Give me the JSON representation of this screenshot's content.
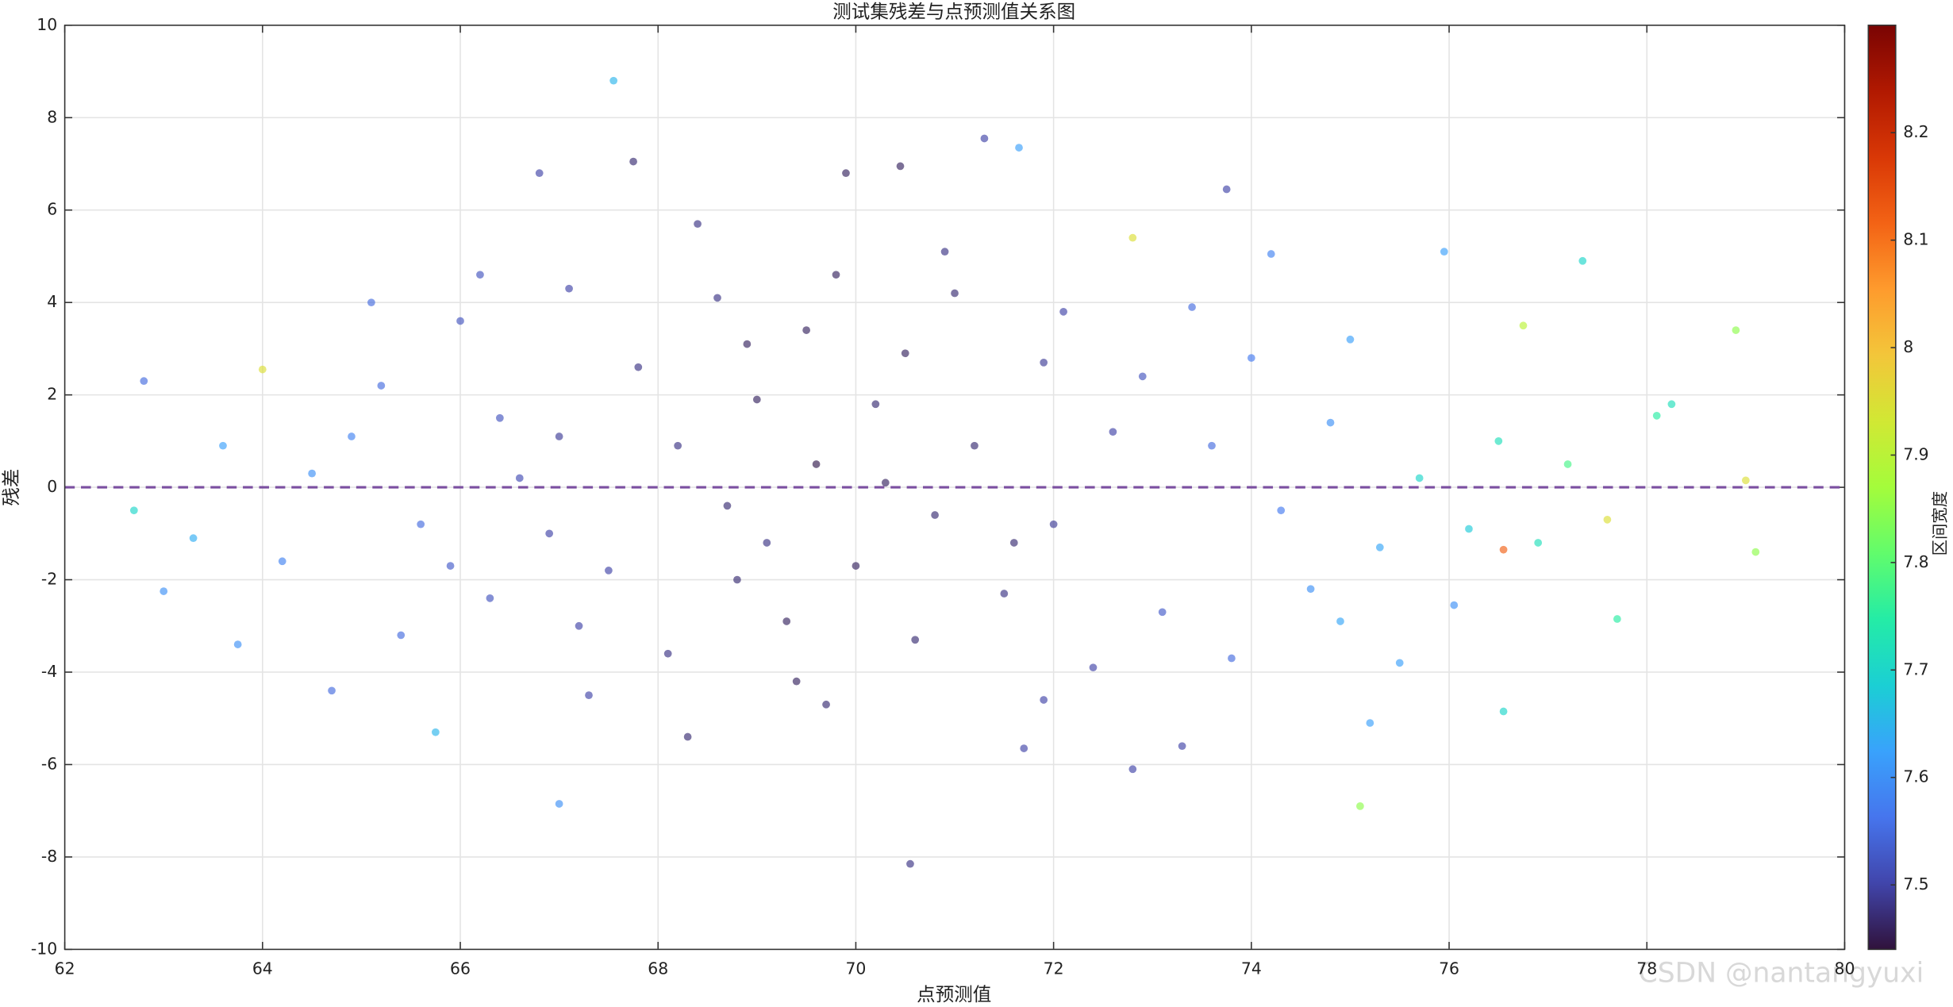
{
  "chart_data": {
    "type": "scatter",
    "title": "测试集残差与点预测值关系图",
    "x_label": "点预测值",
    "y_label": "残差",
    "colorbar_label": "区间宽度",
    "watermark": "CSDN @nantangyuxi",
    "x": [
      67.55,
      70.55,
      76.55,
      75.1,
      62.7,
      79.1,
      79.0,
      77.6,
      72.8,
      67.0,
      71.3,
      71.65,
      65.75,
      62.8,
      77.35,
      78.9,
      76.75,
      64.0,
      72.8,
      67.75,
      69.9,
      66.8,
      70.45,
      73.75,
      63.0,
      63.75,
      64.7,
      68.3,
      71.7,
      73.3,
      75.2,
      76.55,
      77.7,
      78.1,
      78.25,
      76.05,
      75.95,
      74.2,
      69.4,
      68.9,
      69.1,
      69.6,
      70.2,
      70.8,
      68.2,
      67.5,
      66.4,
      65.6,
      65.2,
      64.5,
      64.2,
      66.0,
      67.1,
      68.6,
      69.8,
      71.0,
      72.1,
      72.9,
      73.6,
      74.3,
      74.8,
      75.3,
      75.7,
      76.2,
      76.5,
      73.1,
      72.4,
      71.5,
      70.6,
      69.3,
      68.1,
      67.2,
      66.3,
      65.4,
      66.9,
      68.7,
      70.0,
      71.2,
      72.0,
      72.6,
      71.9,
      70.5,
      69.0,
      67.8,
      66.6,
      65.9,
      64.9,
      63.6,
      63.3,
      74.0,
      74.6,
      75.0,
      73.4,
      70.9,
      68.4,
      66.2,
      65.1,
      67.3,
      69.7,
      71.9,
      73.8,
      74.9,
      76.9,
      77.2,
      75.5,
      68.8,
      70.3,
      71.6,
      69.5,
      67.0
    ],
    "y": [
      8.8,
      -8.15,
      -1.35,
      -6.9,
      -0.5,
      -1.4,
      0.15,
      -0.7,
      -6.1,
      -6.85,
      7.55,
      7.35,
      -5.3,
      2.3,
      4.9,
      3.4,
      3.5,
      2.55,
      5.4,
      7.05,
      6.8,
      6.8,
      6.95,
      6.45,
      -2.25,
      -3.4,
      -4.4,
      -5.4,
      -5.65,
      -5.6,
      -5.1,
      -4.85,
      -2.85,
      1.55,
      1.8,
      -2.55,
      5.1,
      5.05,
      -4.2,
      3.1,
      -1.2,
      0.5,
      1.8,
      -0.6,
      0.9,
      -1.8,
      1.5,
      -0.8,
      2.2,
      0.3,
      -1.6,
      3.6,
      4.3,
      4.1,
      4.6,
      4.2,
      3.8,
      2.4,
      0.9,
      -0.5,
      1.4,
      -1.3,
      0.2,
      -0.9,
      1.0,
      -2.7,
      -3.9,
      -2.3,
      -3.3,
      -2.9,
      -3.6,
      -3.0,
      -2.4,
      -3.2,
      -1.0,
      -0.4,
      -1.7,
      0.9,
      -0.8,
      1.2,
      2.7,
      2.9,
      1.9,
      2.6,
      0.2,
      -1.7,
      1.1,
      0.9,
      -1.1,
      2.8,
      -2.2,
      3.2,
      3.9,
      5.1,
      5.7,
      4.6,
      4.0,
      -4.5,
      -4.7,
      -4.6,
      -3.7,
      -2.9,
      -1.2,
      0.5,
      -3.8,
      -2.0,
      0.1,
      -1.2,
      3.4,
      1.1
    ],
    "color_values": [
      7.65,
      7.48,
      8.12,
      7.85,
      7.7,
      7.85,
      7.95,
      7.95,
      7.5,
      7.6,
      7.5,
      7.62,
      7.65,
      7.55,
      7.7,
      7.85,
      7.9,
      7.95,
      7.95,
      7.47,
      7.46,
      7.5,
      7.46,
      7.5,
      7.6,
      7.6,
      7.55,
      7.47,
      7.5,
      7.5,
      7.62,
      7.7,
      7.75,
      7.75,
      7.72,
      7.6,
      7.62,
      7.58,
      7.46,
      7.46,
      7.48,
      7.45,
      7.47,
      7.47,
      7.48,
      7.5,
      7.52,
      7.55,
      7.55,
      7.6,
      7.58,
      7.52,
      7.5,
      7.48,
      7.46,
      7.47,
      7.5,
      7.52,
      7.55,
      7.57,
      7.6,
      7.63,
      7.7,
      7.68,
      7.72,
      7.53,
      7.5,
      7.48,
      7.47,
      7.46,
      7.48,
      7.5,
      7.52,
      7.55,
      7.5,
      7.47,
      7.46,
      7.47,
      7.49,
      7.5,
      7.49,
      7.46,
      7.46,
      7.48,
      7.51,
      7.53,
      7.58,
      7.62,
      7.64,
      7.57,
      7.6,
      7.62,
      7.55,
      7.48,
      7.48,
      7.52,
      7.55,
      7.5,
      7.47,
      7.5,
      7.55,
      7.63,
      7.72,
      7.78,
      7.62,
      7.47,
      7.46,
      7.47,
      7.46,
      7.49
    ],
    "xlim": [
      62,
      80
    ],
    "xticks": [
      62,
      64,
      66,
      68,
      70,
      72,
      74,
      76,
      78,
      80
    ],
    "ylim": [
      -10,
      10
    ],
    "yticks": [
      -10,
      -8,
      -6,
      -4,
      -2,
      0,
      2,
      4,
      6,
      8,
      10
    ],
    "clim": [
      7.44,
      8.3
    ],
    "cticks": [
      7.5,
      7.6,
      7.7,
      7.8,
      7.9,
      8,
      8.1,
      8.2
    ],
    "colormap": [
      "#30123b",
      "#4145ab",
      "#4675ed",
      "#39a2fc",
      "#1bcfd4",
      "#24eca6",
      "#61fc6c",
      "#a4fc3b",
      "#d1e834",
      "#f3c63a",
      "#fe9b2d",
      "#f36315",
      "#d93806",
      "#b11901",
      "#7a0403"
    ],
    "grid": true,
    "hline": {
      "value": 0,
      "color": "#7b4fa0"
    }
  }
}
